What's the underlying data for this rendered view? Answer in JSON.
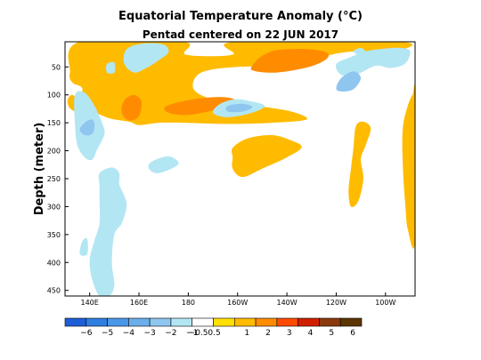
{
  "chart_data": {
    "type": "heatmap",
    "title": "Equatorial Temperature Anomaly (°C)",
    "subtitle": "Pentad centered on 22 JUN 2017",
    "ylabel": "Depth (meter)",
    "xlabel": "",
    "x_ticks": [
      "140E",
      "160E",
      "180",
      "160W",
      "140W",
      "120W",
      "100W"
    ],
    "x_tick_lon": [
      140,
      160,
      180,
      200,
      220,
      240,
      260
    ],
    "xlim_lon": [
      130,
      272
    ],
    "y_ticks": [
      "50",
      "100",
      "150",
      "200",
      "250",
      "300",
      "350",
      "400",
      "450"
    ],
    "ylim": [
      5,
      460
    ],
    "colorbar": {
      "labels": [
        "-6",
        "-5",
        "-4",
        "-3",
        "-2",
        "-1",
        "-0.5",
        "0.5",
        "1",
        "2",
        "3",
        "4",
        "5",
        "6"
      ],
      "colors": [
        "#1e5fd8",
        "#2f7fe0",
        "#4a96e8",
        "#6aaeea",
        "#8ec6f0",
        "#b3e6f3",
        "#ffffff",
        "#ffe000",
        "#ffbb00",
        "#ff8c00",
        "#ff4a00",
        "#d21e00",
        "#8b3a0e",
        "#5c3500"
      ]
    },
    "regions": [
      {
        "level": "1",
        "pts": [
          [
            136,
            5
          ],
          [
            178,
            5
          ],
          [
            179,
            28
          ],
          [
            198,
            28
          ],
          [
            199,
            5
          ],
          [
            266,
            5
          ],
          [
            264,
            22
          ],
          [
            248,
            22
          ],
          [
            238,
            28
          ],
          [
            228,
            42
          ],
          [
            215,
            48
          ],
          [
            200,
            50
          ],
          [
            188,
            56
          ],
          [
            183,
            68
          ],
          [
            182,
            88
          ],
          [
            186,
            102
          ],
          [
            194,
            112
          ],
          [
            208,
            120
          ],
          [
            222,
            130
          ],
          [
            228,
            144
          ],
          [
            214,
            150
          ],
          [
            196,
            152
          ],
          [
            178,
            150
          ],
          [
            168,
            150
          ],
          [
            160,
            154
          ],
          [
            156,
            148
          ],
          [
            148,
            142
          ],
          [
            141,
            128
          ],
          [
            136,
            112
          ],
          [
            137,
            88
          ],
          [
            133,
            78
          ],
          [
            132,
            60
          ]
        ]
      },
      {
        "level": "1",
        "pts": [
          [
            198,
            195
          ],
          [
            204,
            178
          ],
          [
            214,
            172
          ],
          [
            222,
            182
          ],
          [
            226,
            194
          ],
          [
            220,
            212
          ],
          [
            210,
            232
          ],
          [
            202,
            247
          ],
          [
            198,
            232
          ],
          [
            198,
            212
          ]
        ]
      },
      {
        "level": "1",
        "pts": [
          [
            248,
            156
          ],
          [
            251,
            148
          ],
          [
            254,
            160
          ],
          [
            252,
            190
          ],
          [
            250,
            215
          ],
          [
            251,
            250
          ],
          [
            249,
            290
          ],
          [
            246,
            300
          ],
          [
            245,
            272
          ],
          [
            246,
            232
          ],
          [
            247,
            195
          ]
        ]
      },
      {
        "level": "1",
        "pts": [
          [
            271,
            100
          ],
          [
            272,
            102
          ],
          [
            272,
            360
          ],
          [
            269,
            340
          ],
          [
            268,
            295
          ],
          [
            267,
            225
          ],
          [
            267,
            160
          ],
          [
            269,
            120
          ]
        ]
      },
      {
        "level": "1",
        "pts": [
          [
            133,
            100
          ],
          [
            136,
            115
          ],
          [
            135,
            130
          ],
          [
            132,
            124
          ],
          [
            131,
            110
          ]
        ]
      },
      {
        "level": "1",
        "pts": [
          [
            247,
            10
          ],
          [
            250,
            6
          ],
          [
            252,
            14
          ],
          [
            250,
            22
          ],
          [
            247,
            18
          ]
        ]
      },
      {
        "level": "2",
        "pts": [
          [
            154,
            110
          ],
          [
            158,
            100
          ],
          [
            161,
            112
          ],
          [
            160,
            138
          ],
          [
            156,
            146
          ],
          [
            153,
            132
          ]
        ]
      },
      {
        "level": "2",
        "pts": [
          [
            171,
            120
          ],
          [
            182,
            108
          ],
          [
            194,
            104
          ],
          [
            200,
            111
          ],
          [
            198,
            120
          ],
          [
            190,
            128
          ],
          [
            180,
            136
          ],
          [
            172,
            132
          ]
        ]
      },
      {
        "level": "2",
        "pts": [
          [
            210,
            30
          ],
          [
            216,
            20
          ],
          [
            228,
            18
          ],
          [
            236,
            24
          ],
          [
            236,
            36
          ],
          [
            229,
            50
          ],
          [
            216,
            60
          ],
          [
            206,
            56
          ],
          [
            207,
            42
          ]
        ]
      },
      {
        "level": "-1",
        "pts": [
          [
            155,
            18
          ],
          [
            162,
            8
          ],
          [
            170,
            10
          ],
          [
            172,
            24
          ],
          [
            168,
            38
          ],
          [
            163,
            52
          ],
          [
            158,
            60
          ],
          [
            154,
            44
          ]
        ]
      },
      {
        "level": "-1",
        "pts": [
          [
            147,
            45
          ],
          [
            150,
            42
          ],
          [
            150,
            60
          ],
          [
            147,
            60
          ]
        ]
      },
      {
        "level": "-1",
        "pts": [
          [
            134,
            100
          ],
          [
            138,
            96
          ],
          [
            142,
            120
          ],
          [
            145,
            150
          ],
          [
            146,
            170
          ],
          [
            143,
            198
          ],
          [
            141,
            216
          ],
          [
            138,
            212
          ],
          [
            135,
            190
          ],
          [
            134,
            150
          ]
        ]
      },
      {
        "level": "-1",
        "pts": [
          [
            193,
            116
          ],
          [
            199,
            108
          ],
          [
            206,
            112
          ],
          [
            211,
            120
          ],
          [
            206,
            132
          ],
          [
            196,
            140
          ],
          [
            190,
            132
          ]
        ]
      },
      {
        "level": "-1",
        "pts": [
          [
            165,
            220
          ],
          [
            172,
            210
          ],
          [
            176,
            224
          ],
          [
            168,
            240
          ],
          [
            164,
            232
          ]
        ]
      },
      {
        "level": "-1",
        "pts": [
          [
            144,
            240
          ],
          [
            149,
            230
          ],
          [
            152,
            240
          ],
          [
            152,
            260
          ],
          [
            154,
            280
          ],
          [
            155,
            300
          ],
          [
            153,
            330
          ],
          [
            150,
            350
          ],
          [
            149,
            400
          ],
          [
            150,
            440
          ],
          [
            148,
            460
          ],
          [
            144,
            460
          ],
          [
            141,
            430
          ],
          [
            140,
            395
          ],
          [
            142,
            360
          ],
          [
            144,
            330
          ],
          [
            144,
            290
          ],
          [
            144,
            262
          ]
        ]
      },
      {
        "level": "-1",
        "pts": [
          [
            137,
            362
          ],
          [
            139,
            358
          ],
          [
            139,
            385
          ],
          [
            136,
            385
          ]
        ]
      },
      {
        "level": "-1",
        "pts": [
          [
            240,
            45
          ],
          [
            246,
            32
          ],
          [
            252,
            22
          ],
          [
            258,
            18
          ],
          [
            266,
            16
          ],
          [
            270,
            22
          ],
          [
            268,
            44
          ],
          [
            262,
            52
          ],
          [
            256,
            48
          ],
          [
            248,
            64
          ],
          [
            242,
            64
          ]
        ]
      },
      {
        "level": "-1",
        "pts": [
          [
            247,
            22
          ],
          [
            250,
            16
          ],
          [
            252,
            24
          ],
          [
            250,
            30
          ]
        ]
      },
      {
        "level": "-2",
        "pts": [
          [
            138,
            150
          ],
          [
            141,
            144
          ],
          [
            142,
            155
          ],
          [
            141,
            170
          ],
          [
            138,
            172
          ],
          [
            136,
            162
          ]
        ]
      },
      {
        "level": "-2",
        "pts": [
          [
            196,
            120
          ],
          [
            202,
            116
          ],
          [
            206,
            122
          ],
          [
            202,
            130
          ],
          [
            196,
            130
          ]
        ]
      },
      {
        "level": "-2",
        "pts": [
          [
            240,
            88
          ],
          [
            242,
            70
          ],
          [
            247,
            58
          ],
          [
            250,
            70
          ],
          [
            247,
            90
          ],
          [
            242,
            94
          ]
        ]
      }
    ]
  }
}
